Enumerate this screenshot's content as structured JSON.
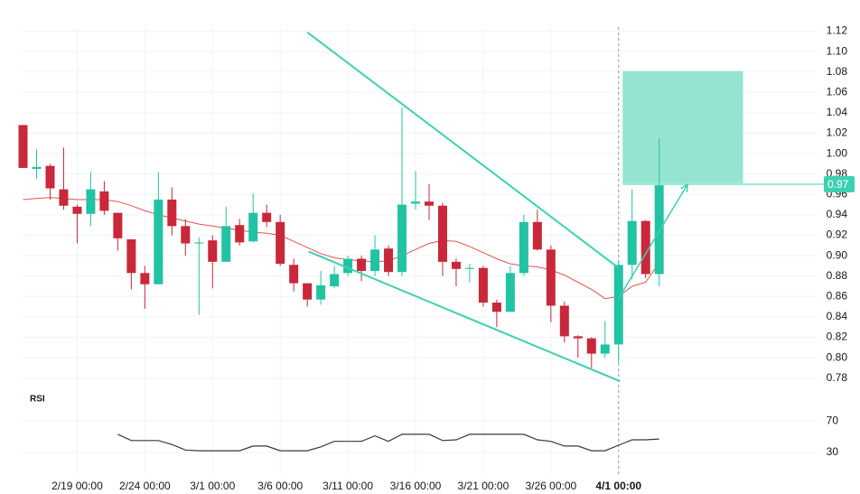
{
  "chart_data": [
    {
      "type": "candlestick",
      "categories": [
        null,
        null,
        null,
        null,
        "2/19 00:00",
        null,
        null,
        null,
        null,
        "2/24 00:00",
        null,
        null,
        null,
        null,
        "3/1 00:00",
        null,
        null,
        null,
        null,
        "3/6 00:00",
        null,
        null,
        null,
        null,
        "3/11 00:00",
        null,
        null,
        null,
        null,
        "3/16 00:00",
        null,
        null,
        null,
        null,
        "3/21 00:00",
        null,
        null,
        null,
        null,
        "3/26 00:00",
        null,
        null,
        null,
        null,
        "4/1 00:00",
        null,
        null,
        null
      ],
      "open": [
        1.028,
        0.985,
        0.988,
        0.965,
        0.948,
        0.941,
        0.963,
        0.942,
        0.916,
        0.883,
        0.872,
        0.955,
        0.929,
        0.912,
        0.915,
        0.894,
        0.93,
        0.914,
        0.942,
        0.933,
        0.891,
        0.873,
        0.857,
        0.87,
        0.883,
        0.897,
        0.885,
        0.907,
        0.884,
        0.951,
        0.953,
        0.949,
        0.894,
        0.887,
        0.888,
        0.854,
        0.845,
        0.883,
        0.933,
        0.906,
        0.851,
        0.821,
        0.819,
        0.804,
        0.813,
        0.891,
        0.934,
        0.882
      ],
      "high": [
        1.028,
        1.004,
        0.99,
        1.006,
        0.95,
        0.982,
        0.973,
        0.942,
        0.916,
        0.89,
        0.982,
        0.967,
        0.936,
        0.918,
        0.92,
        0.948,
        0.936,
        0.961,
        0.95,
        0.94,
        0.897,
        0.873,
        0.885,
        0.89,
        0.9,
        0.9,
        0.92,
        0.91,
        1.045,
        0.983,
        0.97,
        0.952,
        0.897,
        0.892,
        0.89,
        0.857,
        0.89,
        0.94,
        0.945,
        0.91,
        0.855,
        0.822,
        0.82,
        0.836,
        0.895,
        0.965,
        0.935,
        1.015
      ],
      "low": [
        0.986,
        0.975,
        0.955,
        0.945,
        0.912,
        0.929,
        0.94,
        0.905,
        0.867,
        0.848,
        0.872,
        0.92,
        0.9,
        0.842,
        0.868,
        0.894,
        0.91,
        0.913,
        0.928,
        0.89,
        0.865,
        0.85,
        0.852,
        0.868,
        0.88,
        0.875,
        0.88,
        0.88,
        0.88,
        0.945,
        0.935,
        0.88,
        0.87,
        0.874,
        0.85,
        0.83,
        0.845,
        0.88,
        0.905,
        0.835,
        0.815,
        0.8,
        0.79,
        0.8,
        0.795,
        0.877,
        0.878,
        0.87
      ],
      "close": [
        0.986,
        0.987,
        0.966,
        0.949,
        0.941,
        0.965,
        0.944,
        0.917,
        0.883,
        0.872,
        0.955,
        0.929,
        0.912,
        0.913,
        0.894,
        0.929,
        0.913,
        0.942,
        0.933,
        0.892,
        0.873,
        0.857,
        0.871,
        0.882,
        0.897,
        0.885,
        0.906,
        0.884,
        0.95,
        0.953,
        0.949,
        0.894,
        0.887,
        0.888,
        0.854,
        0.845,
        0.883,
        0.933,
        0.906,
        0.851,
        0.821,
        0.819,
        0.804,
        0.813,
        0.891,
        0.934,
        0.882,
        0.969
      ],
      "moving_average": [
        0.955,
        0.956,
        0.957,
        0.956,
        0.955,
        0.955,
        0.955,
        0.953,
        0.949,
        0.944,
        0.94,
        0.937,
        0.934,
        0.931,
        0.929,
        0.927,
        0.925,
        0.923,
        0.922,
        0.92,
        0.914,
        0.908,
        0.902,
        0.898,
        0.896,
        0.895,
        0.894,
        0.895,
        0.9,
        0.906,
        0.912,
        0.915,
        0.914,
        0.909,
        0.903,
        0.897,
        0.892,
        0.89,
        0.889,
        0.886,
        0.881,
        0.874,
        0.867,
        0.858,
        0.86,
        0.87,
        0.874,
        0.893
      ],
      "up_color": "#22c3a2",
      "down_color": "#c8283a",
      "ma_color": "#e0544e",
      "xlim": [
        -0.1,
        58.7
      ],
      "ylim": [
        0.77,
        1.124
      ],
      "yticks": [
        0.78,
        {
          "value": 0.8,
          "label": "0.80"
        },
        0.82,
        0.84,
        0.86,
        0.88,
        {
          "value": 0.9,
          "label": "0.90"
        },
        0.92,
        0.94,
        0.96,
        0.98,
        {
          "value": 1.0,
          "label": "1.00"
        },
        1.02,
        1.04,
        1.06,
        1.08,
        {
          "value": 1.1,
          "label": "1.10"
        },
        1.12
      ],
      "grid": true,
      "crosshair": 44,
      "trendlines": [
        [
          [
            21,
            1.119
          ],
          [
            44,
            0.888
          ]
        ],
        [
          [
            21.1,
            0.904
          ],
          [
            44.1,
            0.777
          ]
        ]
      ],
      "arrow": [
        [
          44,
          0.858
        ],
        [
          49.1,
          0.97
        ]
      ],
      "target_box": {
        "x": [
          44.3,
          53.2
        ],
        "y": [
          0.971,
          1.081
        ]
      },
      "price_line": 0.97,
      "drawing_color": "#3dd1b0"
    },
    {
      "type": "line",
      "title": "RSI",
      "values": [
        null,
        null,
        null,
        null,
        null,
        null,
        null,
        53,
        45,
        45,
        45,
        40,
        33,
        32,
        32,
        32,
        32,
        38,
        38,
        32,
        32,
        32,
        37,
        44,
        44,
        44,
        51,
        44,
        53,
        53,
        53,
        45,
        46,
        53,
        53,
        53,
        53,
        53,
        46,
        44,
        38,
        38,
        32,
        32,
        39,
        46,
        46,
        47
      ],
      "color": "#3a3a3a",
      "xlim": [
        -0.1,
        58.7
      ],
      "ylim": [
        8,
        100
      ],
      "yticks": [
        30,
        70
      ]
    }
  ]
}
